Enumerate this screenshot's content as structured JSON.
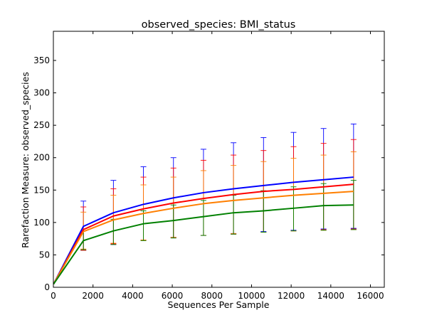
{
  "chart_data": {
    "type": "line",
    "title": "observed_species: BMI_status",
    "xlabel": "Sequences Per Sample",
    "ylabel": "Rarefaction Measure: observed_species",
    "xlim": [
      0,
      16700
    ],
    "ylim": [
      0,
      395
    ],
    "xticks": [
      0,
      2000,
      4000,
      6000,
      8000,
      10000,
      12000,
      14000,
      16000
    ],
    "yticks": [
      0,
      50,
      100,
      150,
      200,
      250,
      300,
      350
    ],
    "grid": false,
    "legend": "none",
    "x": [
      10,
      1515,
      3030,
      4545,
      6060,
      7575,
      9090,
      10605,
      12120,
      13635,
      15150
    ],
    "series": [
      {
        "color": "#0000ff",
        "values": [
          5,
          94,
          115,
          128,
          138,
          146,
          152,
          157,
          162,
          166,
          170
        ],
        "err_low": [
          5,
          57,
          66,
          73,
          77,
          80,
          83,
          86,
          88,
          90,
          91
        ],
        "err_high": [
          5,
          133,
          165,
          186,
          200,
          213,
          223,
          231,
          239,
          245,
          252
        ]
      },
      {
        "color": "#ff0000",
        "values": [
          5,
          89,
          110,
          121,
          130,
          137,
          143,
          148,
          151,
          155,
          159
        ],
        "err_low": [
          5,
          57,
          67,
          73,
          77,
          80,
          82,
          85,
          87,
          89,
          90
        ],
        "err_high": [
          5,
          124,
          152,
          170,
          184,
          196,
          204,
          211,
          217,
          222,
          228
        ]
      },
      {
        "color": "#ff7f00",
        "values": [
          5,
          86,
          104,
          114,
          122,
          129,
          134,
          138,
          142,
          145,
          148
        ],
        "err_low": [
          5,
          59,
          68,
          73,
          77,
          80,
          83,
          85,
          87,
          88,
          89
        ],
        "err_high": [
          5,
          116,
          142,
          158,
          170,
          180,
          188,
          194,
          199,
          204,
          209
        ]
      },
      {
        "color": "#008000",
        "values": [
          5,
          72,
          87,
          98,
          103,
          109,
          115,
          118,
          122,
          126,
          127
        ],
        "err_low": [
          5,
          58,
          66,
          72,
          76,
          80,
          82,
          85,
          87,
          88,
          89
        ],
        "err_high": [
          5,
          87,
          105,
          118,
          127,
          134,
          142,
          149,
          155,
          160,
          165
        ]
      }
    ]
  }
}
